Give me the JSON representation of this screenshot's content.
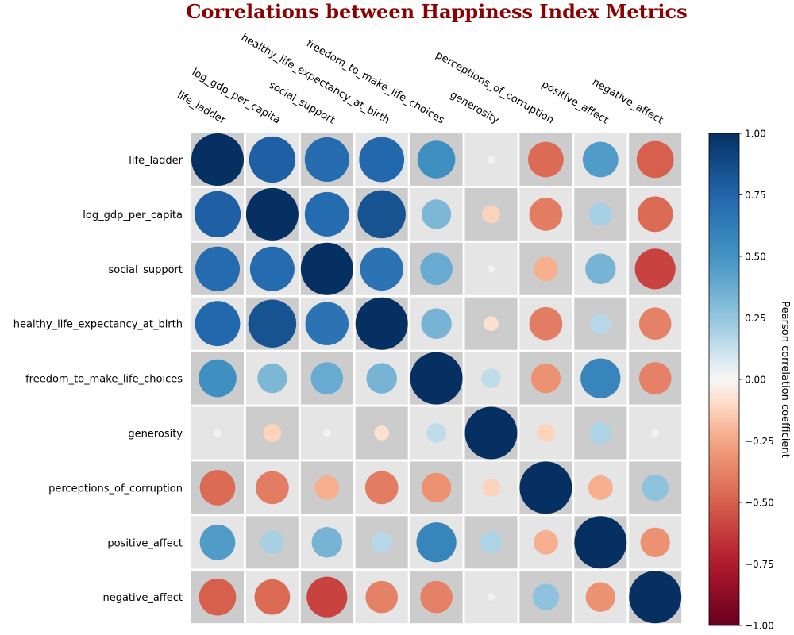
{
  "chart_data": {
    "type": "heatmap",
    "title": "Correlations between Happiness Index Metrics",
    "variables": [
      "life_ladder",
      "log_gdp_per_capita",
      "social_support",
      "healthy_life_expectancy_at_birth",
      "freedom_to_make_life_choices",
      "generosity",
      "perceptions_of_corruption",
      "positive_affect",
      "negative_affect"
    ],
    "matrix": [
      [
        1.0,
        0.78,
        0.72,
        0.74,
        0.52,
        0.02,
        -0.46,
        0.46,
        -0.5
      ],
      [
        0.78,
        1.0,
        0.72,
        0.84,
        0.32,
        -0.12,
        -0.4,
        0.2,
        -0.46
      ],
      [
        0.72,
        0.72,
        1.0,
        0.68,
        0.38,
        0.02,
        -0.22,
        0.34,
        -0.6
      ],
      [
        0.74,
        0.84,
        0.68,
        1.0,
        0.34,
        -0.08,
        -0.4,
        0.16,
        -0.38
      ],
      [
        0.52,
        0.32,
        0.38,
        0.34,
        1.0,
        0.14,
        -0.32,
        0.58,
        -0.38
      ],
      [
        0.02,
        -0.12,
        0.02,
        -0.08,
        0.14,
        1.0,
        -0.12,
        0.18,
        0.02
      ],
      [
        -0.46,
        -0.4,
        -0.22,
        -0.4,
        -0.32,
        -0.12,
        1.0,
        -0.22,
        0.26
      ],
      [
        0.46,
        0.2,
        0.34,
        0.16,
        0.58,
        0.18,
        -0.22,
        1.0,
        -0.32
      ],
      [
        -0.5,
        -0.46,
        -0.6,
        -0.38,
        -0.38,
        0.02,
        0.26,
        -0.32,
        1.0
      ]
    ],
    "colorbar": {
      "label": "Pearson correlation coefficient",
      "range": [
        -1.0,
        1.0
      ],
      "ticks": [
        "1.00",
        "0.75",
        "0.50",
        "0.25",
        "0.00",
        "−0.25",
        "−0.50",
        "−0.75",
        "−1.00"
      ],
      "tick_values": [
        1.0,
        0.75,
        0.5,
        0.25,
        0.0,
        -0.25,
        -0.5,
        -0.75,
        -1.0
      ]
    },
    "colormap": "RdBu",
    "cell_background_colors": [
      "#cccccc",
      "#e5e5e5"
    ],
    "title_color": "#8b0000"
  }
}
